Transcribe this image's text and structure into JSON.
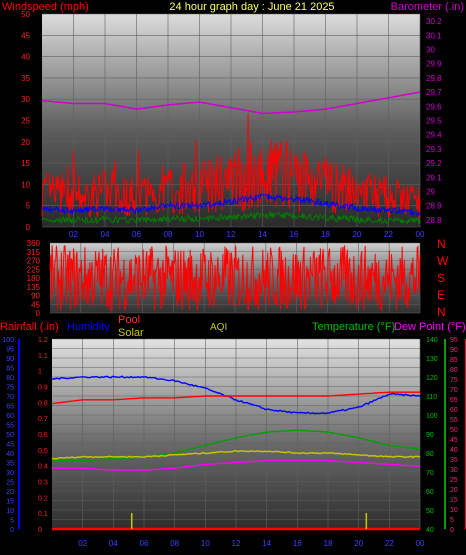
{
  "header": {
    "wind_label": "Windspeed (mph)",
    "title": "24 hour graph day : June 21 2025",
    "baro_label": "Barometer (.in)"
  },
  "colors": {
    "background": "#000000",
    "wind": "#ff0000",
    "wind_avg": "#0000ff",
    "wind_low": "#008000",
    "barometer": "#d000d0",
    "direction": "#ff0000",
    "rain": "#ff0000",
    "humidity": "#0000ff",
    "pool": "#ff0000",
    "solar": "#c8c800",
    "aqi": "#c8c800",
    "temperature": "#00a000",
    "dewpoint": "#ff00ff",
    "grid": "#606060"
  },
  "compass": [
    "N",
    "W",
    "S",
    "E",
    "N"
  ],
  "lower_legend": {
    "rain": "Rainfall (.in)",
    "humidity": "Humidity",
    "pool": "Pool",
    "solar": "Solar",
    "aqi": "AQI",
    "temperature": "Temperature (°F)",
    "dewpoint": "Dew Point (°F)"
  },
  "chart_data": [
    {
      "id": "wind-baro",
      "type": "line",
      "x_ticks": [
        "02",
        "04",
        "06",
        "08",
        "10",
        "12",
        "14",
        "16",
        "18",
        "20",
        "22",
        "00"
      ],
      "y_left_ticks": [
        "0",
        "5",
        "10",
        "15",
        "20",
        "25",
        "30",
        "35",
        "40",
        "45",
        "50"
      ],
      "y_left_range": [
        0,
        50
      ],
      "y_right_ticks": [
        "28.8",
        "28.9",
        "29",
        "29.1",
        "29.2",
        "29.3",
        "29.4",
        "29.5",
        "29.6",
        "29.7",
        "29.8",
        "29.9",
        "30",
        "30.1",
        "30.2"
      ],
      "y_right_range": [
        28.75,
        30.25
      ],
      "hours": [
        0,
        2,
        4,
        6,
        8,
        10,
        12,
        14,
        16,
        18,
        20,
        22,
        24
      ],
      "series": [
        {
          "name": "Windspeed (mph)",
          "color": "#ff0000",
          "axis": "left",
          "values": [
            8,
            7,
            8,
            7,
            9,
            9,
            11,
            13,
            12,
            10,
            8,
            7,
            6
          ]
        },
        {
          "name": "Barometer (.in)",
          "color": "#d000d0",
          "axis": "right",
          "values": [
            29.64,
            29.62,
            29.62,
            29.58,
            29.61,
            29.63,
            29.59,
            29.55,
            29.56,
            29.58,
            29.62,
            29.66,
            29.7
          ]
        }
      ]
    },
    {
      "id": "wind-direction",
      "type": "line",
      "x_ticks": [],
      "y_ticks": [
        "0",
        "45",
        "90",
        "135",
        "180",
        "225",
        "270",
        "315",
        "360"
      ],
      "y_range": [
        0,
        360
      ],
      "series": [
        {
          "name": "Direction",
          "color": "#ff0000",
          "min": 10,
          "max": 350
        }
      ]
    },
    {
      "id": "weather",
      "type": "line",
      "x_ticks": [
        "02",
        "04",
        "06",
        "08",
        "10",
        "12",
        "14",
        "16",
        "18",
        "20",
        "22",
        "00"
      ],
      "y_humidity_ticks": [
        "0",
        "5",
        "10",
        "15",
        "20",
        "25",
        "30",
        "35",
        "40",
        "45",
        "50",
        "55",
        "60",
        "65",
        "70",
        "75",
        "80",
        "85",
        "90",
        "95",
        "100"
      ],
      "y_rain_ticks": [
        "0",
        "0.1",
        "0.2",
        "0.3",
        "0.4",
        "0.5",
        "0.6",
        "0.7",
        "0.8",
        "0.9",
        "1",
        "1.1",
        "1.2"
      ],
      "y_temp_ticks": [
        "40",
        "50",
        "60",
        "70",
        "80",
        "90",
        "100",
        "110",
        "120",
        "130",
        "140"
      ],
      "y_dew_ticks": [
        "0",
        "5",
        "10",
        "15",
        "20",
        "25",
        "30",
        "35",
        "40",
        "45",
        "50",
        "55",
        "60",
        "65",
        "70",
        "75",
        "80",
        "85",
        "90",
        "95"
      ],
      "hours": [
        0,
        2,
        4,
        6,
        8,
        10,
        12,
        14,
        16,
        18,
        20,
        22,
        24
      ],
      "series": [
        {
          "name": "Humidity",
          "color": "#0000ff",
          "axis": "humidity",
          "values": [
            79,
            80,
            80,
            80,
            78,
            74,
            68,
            63,
            61,
            61,
            64,
            71,
            70
          ]
        },
        {
          "name": "Pool",
          "color": "#ff0000",
          "axis": "temperature",
          "values": [
            106,
            108,
            108,
            109,
            109,
            110,
            110,
            110,
            110,
            110,
            111,
            112,
            112
          ]
        },
        {
          "name": "Temperature (°F)",
          "color": "#00a000",
          "axis": "temperature",
          "values": [
            76,
            76,
            77,
            78,
            80,
            84,
            88,
            91,
            92,
            91,
            88,
            84,
            82
          ]
        },
        {
          "name": "Solar",
          "color": "#c8c800",
          "axis": "temperature",
          "values": [
            77,
            78,
            78,
            78,
            79,
            80,
            81,
            81,
            80,
            80,
            79,
            78,
            78
          ]
        },
        {
          "name": "Dew Point (°F)",
          "color": "#ff00ff",
          "axis": "temperature",
          "values": [
            72,
            72,
            71,
            71,
            72,
            74,
            75,
            76,
            76,
            76,
            75,
            74,
            73
          ]
        },
        {
          "name": "Rainfall (.in)",
          "color": "#ff0000",
          "axis": "rain",
          "values": [
            0,
            0,
            0,
            0,
            0,
            0,
            0,
            0,
            0,
            0,
            0,
            0,
            0
          ]
        }
      ],
      "solar_spikes_hours": [
        5.2,
        20.5
      ]
    }
  ]
}
